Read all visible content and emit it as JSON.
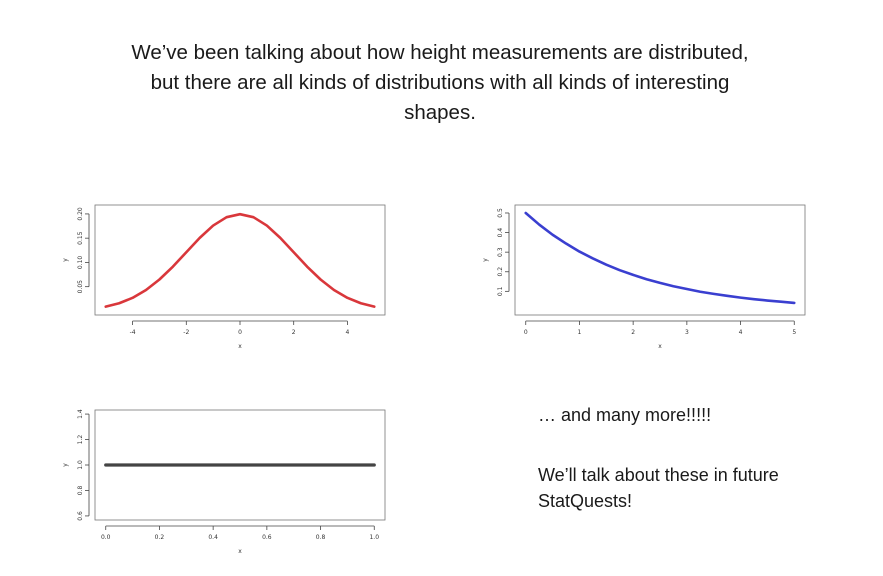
{
  "slide": {
    "title_lines": [
      "We’ve been talking about how height measurements are distributed,",
      "but there are all kinds of distributions with all kinds of interesting",
      "shapes."
    ],
    "more_text": "… and many more!!!!!",
    "future_text": "We’ll talk about these in future StatQuests!"
  },
  "chart_data": [
    {
      "type": "line",
      "id": "normal",
      "color": "#d9373b",
      "xlabel": "x",
      "ylabel": "y",
      "xlim": [
        -5,
        5
      ],
      "ylim": [
        0.0,
        0.21
      ],
      "x_ticks": [
        -4,
        -2,
        0,
        2,
        4
      ],
      "x_tick_labels": [
        "-4",
        "-2",
        "0",
        "2",
        "4"
      ],
      "y_ticks": [
        0.05,
        0.1,
        0.15,
        0.2
      ],
      "y_tick_labels": [
        "0.05",
        "0.10",
        "0.15",
        "0.20"
      ],
      "x": [
        -5,
        -4.5,
        -4,
        -3.5,
        -3,
        -2.5,
        -2,
        -1.5,
        -1,
        -0.5,
        0,
        0.5,
        1,
        1.5,
        2,
        2.5,
        3,
        3.5,
        4,
        4.5,
        5
      ],
      "y": [
        0.0088,
        0.0158,
        0.027,
        0.0431,
        0.0648,
        0.0913,
        0.121,
        0.1506,
        0.176,
        0.1933,
        0.1995,
        0.1933,
        0.176,
        0.1506,
        0.121,
        0.0913,
        0.0648,
        0.0431,
        0.027,
        0.0158,
        0.0088
      ]
    },
    {
      "type": "line",
      "id": "exponential",
      "color": "#3a3fd0",
      "xlabel": "x",
      "ylabel": "y",
      "xlim": [
        0,
        5
      ],
      "ylim": [
        0.0,
        0.52
      ],
      "x_ticks": [
        0,
        1,
        2,
        3,
        4,
        5
      ],
      "x_tick_labels": [
        "0",
        "1",
        "2",
        "3",
        "4",
        "5"
      ],
      "y_ticks": [
        0.1,
        0.2,
        0.3,
        0.4,
        0.5
      ],
      "y_tick_labels": [
        "0.1",
        "0.2",
        "0.3",
        "0.4",
        "0.5"
      ],
      "x": [
        0,
        0.25,
        0.5,
        0.75,
        1,
        1.25,
        1.5,
        1.75,
        2,
        2.25,
        2.5,
        2.75,
        3,
        3.25,
        3.5,
        3.75,
        4,
        4.25,
        4.5,
        4.75,
        5
      ],
      "y": [
        0.5,
        0.441,
        0.389,
        0.344,
        0.303,
        0.268,
        0.236,
        0.208,
        0.184,
        0.162,
        0.143,
        0.126,
        0.112,
        0.098,
        0.087,
        0.077,
        0.068,
        0.06,
        0.053,
        0.047,
        0.041
      ]
    },
    {
      "type": "line",
      "id": "uniform",
      "color": "#444444",
      "xlabel": "x",
      "ylabel": "y",
      "xlim": [
        0,
        1
      ],
      "ylim": [
        0.6,
        1.4
      ],
      "x_ticks": [
        0.0,
        0.2,
        0.4,
        0.6,
        0.8,
        1.0
      ],
      "x_tick_labels": [
        "0.0",
        "0.2",
        "0.4",
        "0.6",
        "0.8",
        "1.0"
      ],
      "y_ticks": [
        0.6,
        0.8,
        1.0,
        1.2,
        1.4
      ],
      "y_tick_labels": [
        "0.6",
        "0.8",
        "1.0",
        "1.2",
        "1.4"
      ],
      "x": [
        0,
        1
      ],
      "y": [
        1.0,
        1.0
      ]
    }
  ]
}
